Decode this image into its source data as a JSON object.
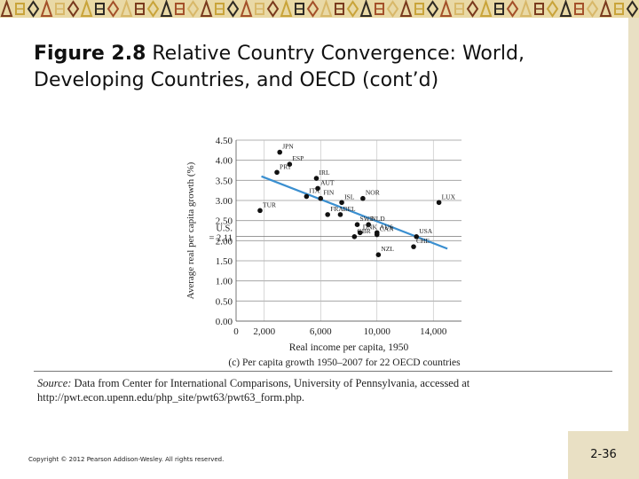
{
  "slide": {
    "title_bold": "Figure 2.8",
    "title_rest": "  Relative Country Convergence: World, Developing Countries, and OECD (cont’d)",
    "source_prefix": "Source:",
    "source_text": " Data from Center for International Comparisons, University of Pennsylvania, accessed at http://pwt.econ.upenn.edu/php_site/pwt63/pwt63_form.php.",
    "copyright": "Copyright © 2012 Pearson Addison-Wesley. All rights reserved.",
    "slide_number": "2-36"
  },
  "colors": {
    "trend_line": "#3a8fd0",
    "points": "#111111",
    "banner_bg": "#e9d9a6",
    "side_strip": "#e9e0c4"
  },
  "chart_data": {
    "type": "scatter",
    "title": "",
    "caption": "(c) Per capita growth 1950–2007 for 22 OECD countries",
    "xlabel": "Real income per capita, 1950",
    "ylabel": "Average real per capita growth (%)",
    "xlim": [
      0,
      16000
    ],
    "ylim": [
      0,
      4.5
    ],
    "xticks": [
      "0",
      "2,000",
      "6,000",
      "10,000",
      "14,000"
    ],
    "xtick_values": [
      0,
      2000,
      6000,
      10000,
      14000
    ],
    "yticks": [
      "0.00",
      "0.50",
      "1.00",
      "1.50",
      "2.00",
      "2.50",
      "3.00",
      "3.50",
      "4.00",
      "4.50"
    ],
    "ytick_values": [
      0,
      0.5,
      1.0,
      1.5,
      2.0,
      2.5,
      3.0,
      3.5,
      4.0,
      4.5
    ],
    "us_reference": {
      "label_line1": "U.S.",
      "label_line2": "= 2.11",
      "value": 2.11
    },
    "points": [
      {
        "label": "JPN",
        "x": 3100,
        "y": 4.2
      },
      {
        "label": "ESP",
        "x": 3800,
        "y": 3.9
      },
      {
        "label": "PRT",
        "x": 2900,
        "y": 3.7
      },
      {
        "label": "IRL",
        "x": 5700,
        "y": 3.55
      },
      {
        "label": "AUT",
        "x": 5800,
        "y": 3.3
      },
      {
        "label": "FIN",
        "x": 6000,
        "y": 3.05
      },
      {
        "label": "ISL",
        "x": 7500,
        "y": 2.95
      },
      {
        "label": "NOR",
        "x": 9000,
        "y": 3.05
      },
      {
        "label": "LUX",
        "x": 14400,
        "y": 2.95
      },
      {
        "label": "ITA",
        "x": 5000,
        "y": 3.1
      },
      {
        "label": "TUR",
        "x": 1700,
        "y": 2.75
      },
      {
        "label": "FRA",
        "x": 6500,
        "y": 2.65
      },
      {
        "label": "BEL",
        "x": 7400,
        "y": 2.65
      },
      {
        "label": "NLD",
        "x": 9400,
        "y": 2.4
      },
      {
        "label": "SWE",
        "x": 8600,
        "y": 2.4
      },
      {
        "label": "AUS",
        "x": 10000,
        "y": 2.2
      },
      {
        "label": "DNK",
        "x": 8800,
        "y": 2.2
      },
      {
        "label": "GBR",
        "x": 8400,
        "y": 2.1
      },
      {
        "label": "CAN",
        "x": 10000,
        "y": 2.15
      },
      {
        "label": "USA",
        "x": 12800,
        "y": 2.1
      },
      {
        "label": "NZL",
        "x": 10100,
        "y": 1.65
      },
      {
        "label": "CHE",
        "x": 12600,
        "y": 1.85
      }
    ],
    "trend": [
      {
        "x": 1800,
        "y": 3.6
      },
      {
        "x": 15000,
        "y": 1.8
      }
    ]
  }
}
